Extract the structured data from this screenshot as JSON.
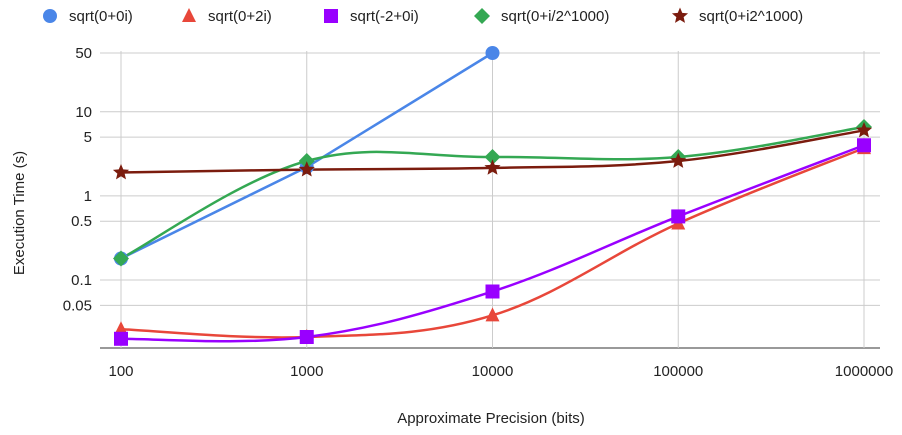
{
  "chart_data": {
    "type": "line",
    "title": "",
    "xlabel": "Approximate Precision (bits)",
    "ylabel": "Execution Time (s)",
    "x_scale": "log",
    "y_scale": "log",
    "xlim": [
      100,
      1000000
    ],
    "ylim": [
      0.02,
      60
    ],
    "x_ticks": [
      100,
      1000,
      10000,
      100000,
      1000000
    ],
    "x_tick_labels": [
      "100",
      "1000",
      "10000",
      "100000",
      "1000000"
    ],
    "y_ticks": [
      0.05,
      0.1,
      0.5,
      1,
      5,
      10,
      50
    ],
    "y_tick_labels": [
      "0.05",
      "0.1",
      "0.5",
      "1",
      "5",
      "10",
      "50"
    ],
    "grid": true,
    "legend_position": "top",
    "series": [
      {
        "name": "sqrt(0+0i)",
        "color": "#4a86e8",
        "marker": "circle",
        "curve": "straight",
        "x": [
          100,
          1000,
          10000
        ],
        "y": [
          0.18,
          2.2,
          50
        ]
      },
      {
        "name": "sqrt(0+2i)",
        "color": "#e8473a",
        "marker": "triangle",
        "curve": "smooth",
        "x": [
          100,
          1000,
          10000,
          100000,
          1000000
        ],
        "y": [
          0.026,
          0.021,
          0.038,
          0.47,
          3.7
        ]
      },
      {
        "name": "sqrt(-2+0i)",
        "color": "#9900ff",
        "marker": "square",
        "curve": "smooth",
        "x": [
          100,
          1000,
          10000,
          100000,
          1000000
        ],
        "y": [
          0.02,
          0.021,
          0.073,
          0.57,
          4.0
        ]
      },
      {
        "name": "sqrt(0+i/2^1000)",
        "color": "#34a853",
        "marker": "diamond",
        "curve": "smooth",
        "x": [
          100,
          1000,
          10000,
          100000,
          1000000
        ],
        "y": [
          0.18,
          2.6,
          2.9,
          2.9,
          6.6
        ]
      },
      {
        "name": "sqrt(0+i2^1000)",
        "color": "#7b1c0e",
        "marker": "star",
        "curve": "smooth",
        "x": [
          100,
          1000,
          10000,
          100000,
          1000000
        ],
        "y": [
          1.9,
          2.05,
          2.15,
          2.6,
          6.0
        ]
      }
    ]
  }
}
